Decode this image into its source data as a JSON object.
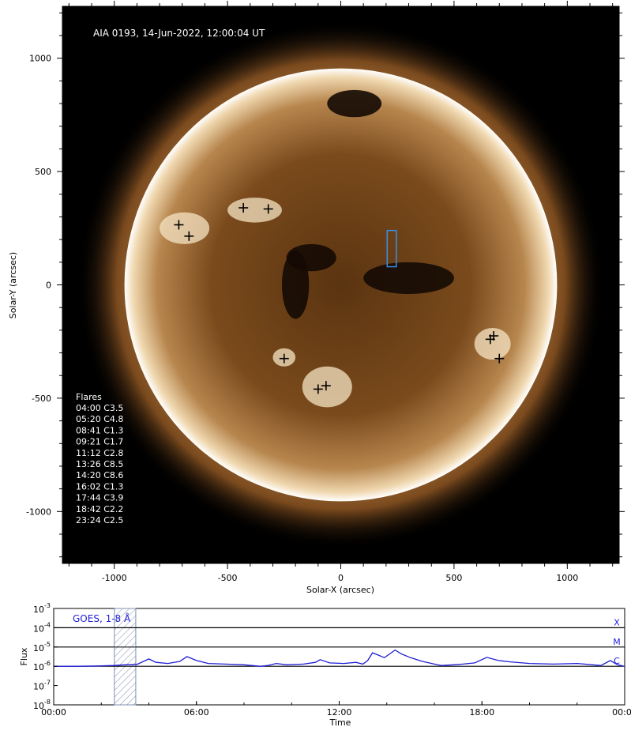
{
  "image": {
    "title": "AIA 0193, 14-Jun-2022, 12:00:04 UT",
    "xlabel": "Solar-X (arcsec)",
    "ylabel": "Solar-Y (arcsec)",
    "xlim": [
      -1229,
      1229
    ],
    "ylim": [
      -1229,
      1229
    ],
    "xticks": [
      -1000,
      -500,
      0,
      500,
      1000
    ],
    "yticks": [
      -1000,
      -500,
      0,
      500,
      1000
    ],
    "solar_radius_arcsec": 955,
    "flare_list_title": "Flares",
    "flare_list": [
      "04:00 C3.5",
      "05:20 C4.8",
      "08:41 C1.3",
      "09:21 C1.7",
      "11:12 C2.8",
      "13:26 C8.5",
      "14:20 C8.6",
      "16:02 C1.3",
      "17:44 C3.9",
      "18:42 C2.2",
      "23:24 C2.5"
    ],
    "flare_locations": [
      {
        "x": -715,
        "y": 265
      },
      {
        "x": -670,
        "y": 215
      },
      {
        "x": -430,
        "y": 340
      },
      {
        "x": -320,
        "y": 335
      },
      {
        "x": -250,
        "y": -325
      },
      {
        "x": -100,
        "y": -460
      },
      {
        "x": -65,
        "y": -445
      },
      {
        "x": 660,
        "y": -240
      },
      {
        "x": 675,
        "y": -225
      },
      {
        "x": 700,
        "y": -325
      }
    ],
    "box": {
      "x0": 205,
      "x1": 245,
      "y0": 80,
      "y1": 240,
      "color": "#3a8ee6"
    }
  },
  "goes": {
    "label": "GOES, 1-8 Å",
    "ylabel": "Flux",
    "xlabel": "Time",
    "xticks": [
      "00:00",
      "06:00",
      "12:00",
      "18:00",
      "00:00"
    ],
    "ytick_bases": [
      "10",
      "10",
      "10",
      "10",
      "10",
      "10"
    ],
    "ytick_exps": [
      "-3",
      "-4",
      "-5",
      "-6",
      "-7",
      "-8"
    ],
    "class_labels": [
      "X",
      "M",
      "C"
    ],
    "line_color": "#1f1fd6",
    "highlight_hours": [
      2.55,
      3.45
    ],
    "chart_data": {
      "type": "line",
      "xlabel": "Time",
      "ylabel": "Flux",
      "log_y": true,
      "ylim": [
        1e-08,
        0.001
      ],
      "xlim_hours": [
        0,
        24
      ],
      "x_hours": [
        0,
        1,
        2,
        2.5,
        3,
        3.5,
        4.0,
        4.3,
        4.8,
        5.3,
        5.6,
        6.0,
        6.5,
        7.2,
        8.0,
        8.5,
        8.7,
        9.0,
        9.35,
        9.8,
        10.5,
        11.0,
        11.2,
        11.6,
        12.2,
        12.7,
        13.0,
        13.2,
        13.4,
        13.6,
        13.9,
        14.1,
        14.35,
        14.6,
        15.0,
        15.5,
        16.0,
        16.3,
        16.8,
        17.2,
        17.7,
        18.2,
        18.7,
        19.2,
        20.0,
        21.0,
        22.0,
        23.0,
        23.4,
        23.7,
        24.0
      ],
      "y_flux": [
        1e-06,
        1e-06,
        1.05e-06,
        1.1e-06,
        1.2e-06,
        1.25e-06,
        2.4e-06,
        1.6e-06,
        1.4e-06,
        1.8e-06,
        3.2e-06,
        2e-06,
        1.4e-06,
        1.3e-06,
        1.2e-06,
        1.05e-06,
        1e-06,
        1.1e-06,
        1.4e-06,
        1.2e-06,
        1.3e-06,
        1.6e-06,
        2.2e-06,
        1.5e-06,
        1.4e-06,
        1.6e-06,
        1.3e-06,
        2e-06,
        5e-06,
        4e-06,
        2.8e-06,
        4.2e-06,
        7e-06,
        4.5e-06,
        2.8e-06,
        1.8e-06,
        1.3e-06,
        1.1e-06,
        1.2e-06,
        1.3e-06,
        1.5e-06,
        2.9e-06,
        2e-06,
        1.7e-06,
        1.4e-06,
        1.3e-06,
        1.4e-06,
        1.1e-06,
        2e-06,
        1.2e-06,
        1e-06
      ]
    }
  }
}
